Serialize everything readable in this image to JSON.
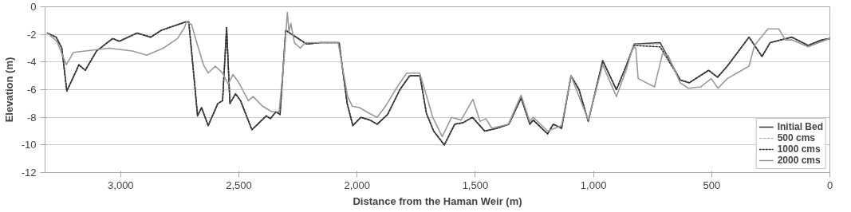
{
  "chart_data": {
    "type": "line",
    "xlabel": "Distance from the Haman Weir (m)",
    "ylabel": "Elevation (m)",
    "x": [
      3310,
      3273,
      3249,
      3228,
      3198,
      3177,
      3150,
      3102,
      3034,
      3006,
      2931,
      2873,
      2828,
      2726,
      2712,
      2685,
      2675,
      2658,
      2630,
      2589,
      2569,
      2552,
      2538,
      2514,
      2493,
      2445,
      2384,
      2367,
      2343,
      2326,
      2302,
      2213,
      2155,
      2076,
      2042,
      2018,
      1984,
      1946,
      1915,
      1871,
      1819,
      1778,
      1734,
      1707,
      1676,
      1631,
      1587,
      1553,
      1512,
      1460,
      1409,
      1358,
      1306,
      1269,
      1255,
      1194,
      1170,
      1135,
      1095,
      1061,
      1022,
      961,
      903,
      862,
      828,
      718,
      633,
      595,
      513,
      475,
      434,
      342,
      287,
      253,
      161,
      92,
      34,
      0
    ],
    "series": [
      {
        "name": "Initial Bed",
        "color": "#333333",
        "line_style": "solid",
        "values": [
          -1.9,
          -2.2,
          -3,
          -6.1,
          -5,
          -4.2,
          -4.6,
          -3.2,
          -2.3,
          -2.5,
          -1.9,
          -2.2,
          -1.7,
          -1.1,
          -1.1,
          -6,
          -7.9,
          -7.3,
          -8.6,
          -7,
          -6.8,
          -1.5,
          -7,
          -6.3,
          -6.8,
          -8.9,
          -7.9,
          -8.1,
          -7.6,
          -7.8,
          -1.7,
          -2.7,
          -2.6,
          -2.6,
          -7,
          -8.6,
          -8,
          -8.2,
          -8.5,
          -7.8,
          -6,
          -5,
          -5,
          -7.7,
          -9,
          -10,
          -8.5,
          -8.4,
          -8,
          -9,
          -8.8,
          -8.5,
          -6.6,
          -8.5,
          -8.2,
          -9.2,
          -8.5,
          -8.8,
          -5,
          -6,
          -8.3,
          -3.9,
          -6,
          -4.3,
          -2.7,
          -2.6,
          -5.3,
          -5.5,
          -4.6,
          -5.1,
          -4.3,
          -2.2,
          -3.6,
          -2.6,
          -2.2,
          -2.8,
          -2.4,
          -2.3
        ]
      },
      {
        "name": "500 cms",
        "color": "#aaaaaa",
        "line_style": "dashed",
        "values": [
          -1.9,
          -2.2,
          -3,
          -6.1,
          -5,
          -4.2,
          -4.6,
          -3.2,
          -2.3,
          -2.5,
          -1.9,
          -2.2,
          -1.7,
          -1.1,
          -1.1,
          -6,
          -7.9,
          -7.3,
          -8.6,
          -7,
          -6.8,
          -1.5,
          -7,
          -6.3,
          -6.8,
          -8.9,
          -7.9,
          -8.1,
          -7.6,
          -7.8,
          -1.7,
          -2.7,
          -2.6,
          -2.6,
          -7,
          -8.6,
          -8,
          -8.2,
          -8.5,
          -7.8,
          -6,
          -5,
          -5,
          -7.7,
          -9,
          -10,
          -8.5,
          -8.4,
          -8,
          -9,
          -8.8,
          -8.5,
          -6.6,
          -8.5,
          -8.2,
          -9.2,
          -8.5,
          -8.8,
          -5,
          -6,
          -8.3,
          -3.9,
          -6,
          -4.3,
          -2.7,
          -2.7,
          -5.3,
          -5.5,
          -4.6,
          -5.1,
          -4.3,
          -2.2,
          -3.6,
          -2.6,
          -2.2,
          -2.8,
          -2.4,
          -2.3
        ]
      },
      {
        "name": "1000 cms",
        "color": "#333333",
        "line_style": "dotted",
        "values": [
          -1.9,
          -2.2,
          -3,
          -6.1,
          -5,
          -4.2,
          -4.6,
          -3.2,
          -2.3,
          -2.5,
          -1.9,
          -2.2,
          -1.7,
          -1.1,
          -1.1,
          -6,
          -7.9,
          -7.3,
          -8.6,
          -7,
          -6.8,
          -1.5,
          -7,
          -6.3,
          -6.8,
          -8.9,
          -7.9,
          -8.1,
          -7.6,
          -7.8,
          -1.7,
          -2.7,
          -2.6,
          -2.6,
          -7,
          -8.6,
          -8,
          -8.2,
          -8.5,
          -7.8,
          -6,
          -5,
          -5,
          -7.7,
          -9,
          -10,
          -8.5,
          -8.4,
          -8,
          -9,
          -8.8,
          -8.5,
          -6.6,
          -8.5,
          -8.2,
          -9.2,
          -8.5,
          -8.8,
          -5,
          -6,
          -8.3,
          -3.9,
          -6,
          -4.3,
          -2.8,
          -2.9,
          -5.3,
          -5.5,
          -4.6,
          -5.1,
          -4.3,
          -2.2,
          -3.6,
          -2.6,
          -2.2,
          -2.8,
          -2.4,
          -2.3
        ]
      },
      {
        "name": "2000 cms",
        "color": "#999999",
        "line_style": "solid",
        "x": [
          3310,
          3270,
          3230,
          3200,
          3100,
          3050,
          2950,
          2890,
          2820,
          2760,
          2730,
          2722,
          2700,
          2680,
          2650,
          2630,
          2600,
          2569,
          2545,
          2525,
          2500,
          2460,
          2440,
          2400,
          2360,
          2330,
          2310,
          2295,
          2288,
          2280,
          2265,
          2240,
          2220,
          2150,
          2080,
          2040,
          2020,
          1990,
          1950,
          1915,
          1880,
          1830,
          1790,
          1735,
          1705,
          1680,
          1640,
          1600,
          1560,
          1510,
          1480,
          1455,
          1430,
          1360,
          1306,
          1270,
          1255,
          1194,
          1135,
          1095,
          1022,
          961,
          903,
          862,
          833,
          821,
          811,
          742,
          708,
          685,
          633,
          599,
          547,
          502,
          473,
          434,
          342,
          319,
          262,
          216,
          188,
          160,
          92,
          0
        ],
        "values": [
          -1.9,
          -2.5,
          -4.2,
          -3.3,
          -3.1,
          -3,
          -3.2,
          -3.5,
          -3,
          -2.3,
          -1.5,
          -1.1,
          -1.3,
          -2.5,
          -4.2,
          -4.8,
          -4.3,
          -4.8,
          -5.6,
          -4.9,
          -5.5,
          -6.8,
          -6.5,
          -7.2,
          -7.6,
          -7.6,
          -4,
          -0.4,
          -1.8,
          -1.2,
          -2.6,
          -3,
          -2.6,
          -2.6,
          -2.6,
          -6.5,
          -7.2,
          -7.3,
          -7.7,
          -8,
          -7.2,
          -5.8,
          -4.8,
          -4.8,
          -6.5,
          -8,
          -9.4,
          -8,
          -8.2,
          -6.7,
          -8.3,
          -8.1,
          -8.8,
          -8.5,
          -6.4,
          -8.3,
          -8,
          -9,
          -8.6,
          -5,
          -8.2,
          -4.2,
          -6.5,
          -4.6,
          -2.9,
          -3,
          -5.2,
          -5.8,
          -3.4,
          -3.5,
          -5.5,
          -5.9,
          -5.8,
          -5.2,
          -5.9,
          -5.2,
          -4.3,
          -2.8,
          -1.6,
          -1.6,
          -2.4,
          -2.4,
          -2.9,
          -2.3
        ]
      }
    ],
    "xlim": [
      3320,
      0
    ],
    "xticks": [
      {
        "value": 3000,
        "label": "3,000"
      },
      {
        "value": 2500,
        "label": "2,500"
      },
      {
        "value": 2000,
        "label": "2,000"
      },
      {
        "value": 1500,
        "label": "1,500"
      },
      {
        "value": 1000,
        "label": "1,000"
      },
      500,
      0
    ],
    "ylim": [
      -12,
      0
    ],
    "yticks": [
      0,
      -2,
      -4,
      -6,
      -8,
      -10,
      -12
    ],
    "grid": "y",
    "legend": "bottom right"
  }
}
